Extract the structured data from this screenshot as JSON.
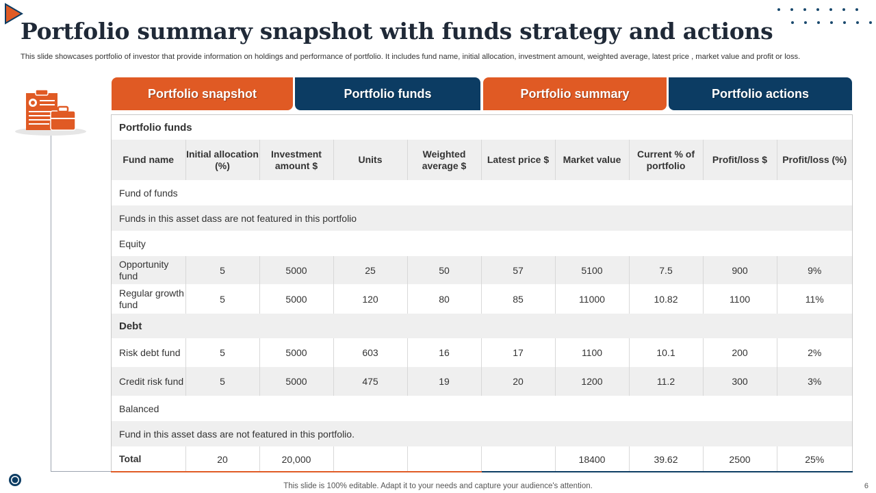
{
  "header": {
    "title": "Portfolio summary snapshot with funds strategy and actions",
    "subtitle": "This slide showcases portfolio of investor that provide information on holdings and performance of portfolio. It includes fund name, initial allocation, investment amount, weighted average, latest price , market value and profit or loss."
  },
  "tabs": [
    {
      "label": "Portfolio snapshot",
      "color": "#e05a24"
    },
    {
      "label": "Portfolio funds",
      "color": "#0c3c63"
    },
    {
      "label": "Portfolio summary",
      "color": "#e05a24"
    },
    {
      "label": "Portfolio actions",
      "color": "#0c3c63"
    }
  ],
  "table": {
    "caption": "Portfolio funds",
    "columns": [
      "Fund name",
      "Initial allocation (%)",
      "Investment amount $",
      "Units",
      "Weighted average $",
      "Latest price $",
      "Market value",
      "Current % of portfolio",
      "Profit/loss $",
      "Profit/loss (%)"
    ],
    "sections": {
      "fund_of_funds": "Fund of funds",
      "fund_of_funds_note": "Funds in this asset dass are not   featured in this portfolio",
      "equity": "Equity",
      "debt": "Debt",
      "balanced": "Balanced",
      "balanced_note": "Fund in this asset dass are not featured in this portfolio."
    },
    "rows": {
      "opportunity": [
        "Opportunity fund",
        "5",
        "5000",
        "25",
        "50",
        "57",
        "5100",
        "7.5",
        "900",
        "9%"
      ],
      "regular": [
        "Regular growth fund",
        "5",
        "5000",
        "120",
        "80",
        "85",
        "11000",
        "10.82",
        "1100",
        "11%"
      ],
      "risk_debt": [
        "Risk debt fund",
        "5",
        "5000",
        "603",
        "16",
        "17",
        "1100",
        "10.1",
        "200",
        "2%"
      ],
      "credit_risk": [
        "Credit risk fund",
        "5",
        "5000",
        "475",
        "19",
        "20",
        "1200",
        "11.2",
        "300",
        "3%"
      ],
      "total": [
        "Total",
        "20",
        "20,000",
        "",
        "",
        "",
        "18400",
        "39.62",
        "2500",
        "25%"
      ]
    }
  },
  "footer": {
    "note": "This slide is 100% editable. Adapt it to your needs and capture your audience's attention.",
    "page_number": "6"
  },
  "icons": {
    "logo": "play-triangle-logo-icon",
    "side": "clipboard-briefcase-icon",
    "dots": "decorative-dots-icon",
    "footer": "circle-logo-icon"
  },
  "colors": {
    "accent_orange": "#e05a24",
    "accent_blue": "#0c3c63"
  }
}
